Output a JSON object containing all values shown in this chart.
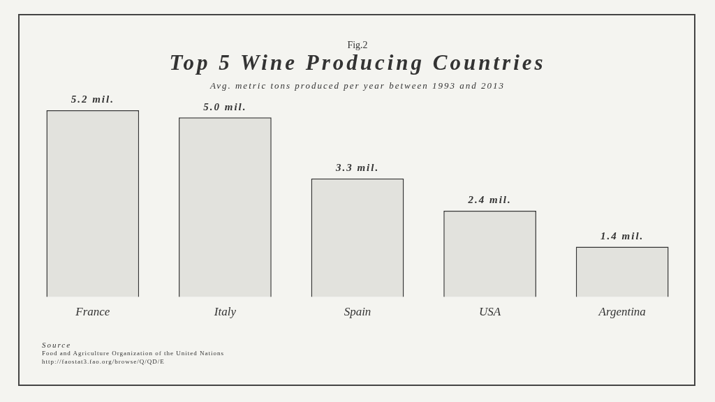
{
  "chart_data": {
    "type": "bar",
    "title": "Top 5 Wine Producing Countries",
    "subtitle": "Avg. metric tons produced per year between 1993 and 2013",
    "categories": [
      "France",
      "Italy",
      "Spain",
      "USA",
      "Argentina"
    ],
    "values": [
      5.2,
      5.0,
      3.3,
      2.4,
      1.4
    ],
    "value_labels": [
      "5.2 mil.",
      "5.0 mil.",
      "3.3 mil.",
      "2.4 mil.",
      "1.4 mil."
    ],
    "color": "#e2e2dd",
    "ylim": [
      0,
      5.2
    ],
    "grid": false,
    "legend": false,
    "annotations": [
      "Fig.2",
      "Source",
      "Food and Agriculture Organization of the United Nations",
      "http://faostat3.fao.org/browse/Q/QD/E"
    ]
  }
}
